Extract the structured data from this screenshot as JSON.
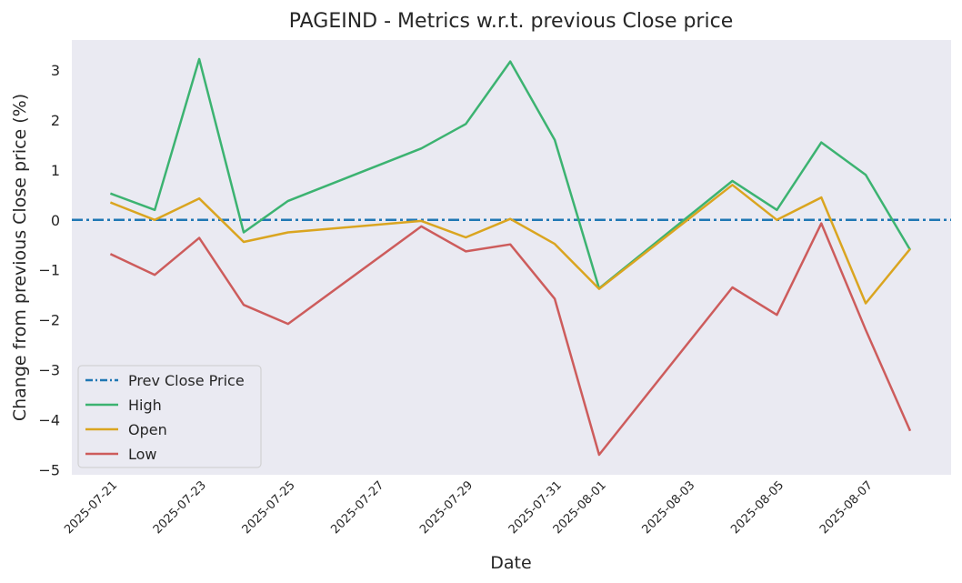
{
  "chart_data": {
    "type": "line",
    "title": "PAGEIND - Metrics w.r.t. previous Close price",
    "xlabel": "Date",
    "ylabel": "Change from previous Close price (%)",
    "x": [
      "2025-07-21",
      "2025-07-22",
      "2025-07-23",
      "2025-07-24",
      "2025-07-25",
      "2025-07-28",
      "2025-07-29",
      "2025-07-30",
      "2025-07-31",
      "2025-08-01",
      "2025-08-04",
      "2025-08-05",
      "2025-08-06",
      "2025-08-07",
      "2025-08-08"
    ],
    "x_ticks": [
      "2025-07-21",
      "2025-07-23",
      "2025-07-25",
      "2025-07-27",
      "2025-07-29",
      "2025-07-31",
      "2025-08-01",
      "2025-08-03",
      "2025-08-05",
      "2025-08-07"
    ],
    "xlim": [
      "2025-07-20",
      "2025-08-08"
    ],
    "ylim": [
      -5.1,
      3.6
    ],
    "y_ticks": [
      3,
      2,
      1,
      0,
      -1,
      -2,
      -3,
      -4,
      -5
    ],
    "y_tick_labels": [
      "3",
      "2",
      "1",
      "0",
      "−1",
      "−2",
      "−3",
      "−4",
      "−5"
    ],
    "grid": false,
    "background": "#eaeaf2",
    "legend_position": "lower-left",
    "reference_line": {
      "name": "Prev Close Price",
      "value": 0,
      "color": "#1f77b4",
      "style": "dash-dot"
    },
    "series": [
      {
        "name": "High",
        "color": "#3cb371",
        "values": [
          0.53,
          0.2,
          3.22,
          -0.25,
          0.38,
          1.43,
          1.92,
          3.17,
          1.6,
          -1.37,
          0.78,
          0.2,
          1.55,
          0.9,
          -0.6
        ]
      },
      {
        "name": "Open",
        "color": "#daa520",
        "values": [
          0.35,
          0.0,
          0.43,
          -0.44,
          -0.25,
          -0.02,
          -0.35,
          0.02,
          -0.48,
          -1.38,
          0.7,
          0.0,
          0.45,
          -1.67,
          -0.58
        ]
      },
      {
        "name": "Low",
        "color": "#cd5c5c",
        "values": [
          -0.68,
          -1.1,
          -0.36,
          -1.7,
          -2.08,
          -0.13,
          -0.63,
          -0.49,
          -1.58,
          -4.7,
          -1.35,
          -1.9,
          -0.07,
          -2.2,
          -4.22
        ]
      }
    ]
  }
}
